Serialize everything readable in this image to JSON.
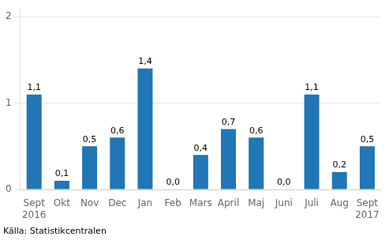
{
  "chart_data": {
    "type": "bar",
    "categories": [
      "Sept\n2016",
      "Okt",
      "Nov",
      "Dec",
      "Jan",
      "Feb",
      "Mars",
      "April",
      "Maj",
      "Juni",
      "Juli",
      "Aug",
      "Sept\n2017"
    ],
    "values": [
      1.1,
      0.1,
      0.5,
      0.6,
      1.4,
      0.0,
      0.4,
      0.7,
      0.6,
      0.0,
      1.1,
      0.2,
      0.5
    ],
    "value_labels": [
      "1,1",
      "0,1",
      "0,5",
      "0,6",
      "1,4",
      "0,0",
      "0,4",
      "0,7",
      "0,6",
      "0,0",
      "1,1",
      "0,2",
      "0,5"
    ],
    "data_labels": true,
    "color": "#2176b5",
    "ylim": [
      0,
      2.1
    ],
    "yticks": [
      0,
      1,
      2
    ],
    "grid": true,
    "annotation": "Källa: Statistikcentralen"
  }
}
